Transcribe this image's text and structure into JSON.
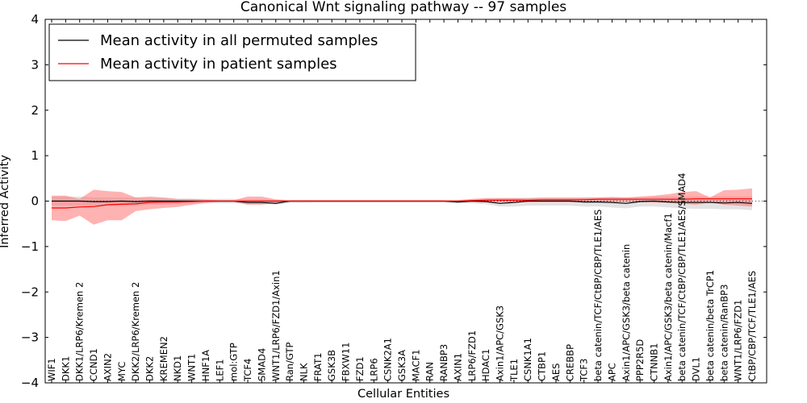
{
  "chart_data": {
    "type": "line",
    "title": "Canonical Wnt signaling pathway -- 97 samples",
    "xlabel": "Cellular Entities",
    "ylabel": "Inferred Activity",
    "ylim": [
      -4,
      4
    ],
    "yticks": [
      4,
      3,
      2,
      1,
      0,
      -1,
      -2,
      -3,
      -4
    ],
    "ytick_labels": [
      "4",
      "3",
      "2",
      "1",
      "0",
      "−1",
      "−2",
      "−3",
      "−4"
    ],
    "legend_position": "top-left",
    "categories": [
      "WIF1",
      "DKK1",
      "DKK1/LRP6/Kremen 2",
      "CCND1",
      "AXIN2",
      "MYC",
      "DKK2/LRP6/Kremen 2",
      "DKK2",
      "KREMEN2",
      "NKD1",
      "WNT1",
      "HNF1A",
      "LEF1",
      "mol:GTP",
      "TCF4",
      "SMAD4",
      "WNT1/LRP6/FZD1/Axin1",
      "Ran/GTP",
      "NLK",
      "FRAT1",
      "GSK3B",
      "FBXW11",
      "FZD1",
      "LRP6",
      "CSNK2A1",
      "GSK3A",
      "MACF1",
      "RAN",
      "RANBP3",
      "AXIN1",
      "LRP6/FZD1",
      "HDAC1",
      "Axin1/APC/GSK3",
      "TLE1",
      "CSNK1A1",
      "CTBP1",
      "AES",
      "CREBBP",
      "TCF3",
      "beta catenin/TCF/CtBP/CBP/TLE1/AES",
      "APC",
      "Axin1/APC/GSK3/beta catenin",
      "PPP2R5D",
      "CTNNB1",
      "Axin1/APC/GSK3/beta catenin/Macf1",
      "beta catenin/TCF/CtBP/CBP/TLE1/AES/SMAD4",
      "DVL1",
      "beta catenin/beta TrCP1",
      "beta catenin/RanBP3",
      "WNT1/LRP6/FZD1",
      "CtBP/CBP/TCF/TLE1/AES"
    ],
    "series": [
      {
        "name": "Mean activity in all permuted samples",
        "color": "#000000",
        "values": [
          0,
          0,
          0,
          -0.01,
          -0.01,
          0,
          -0.01,
          0,
          0,
          0,
          0,
          0,
          0,
          0,
          -0.03,
          -0.03,
          -0.05,
          0,
          0,
          0,
          0,
          0,
          0,
          0,
          0,
          0,
          0,
          0,
          0,
          -0.02,
          0,
          -0.01,
          -0.05,
          -0.03,
          0,
          0,
          0,
          0,
          -0.02,
          -0.02,
          -0.03,
          -0.05,
          -0.01,
          0,
          -0.02,
          -0.03,
          -0.03,
          -0.03,
          -0.04,
          -0.03,
          -0.05
        ],
        "band": {
          "color": "#cccccc",
          "upper": [
            0.1,
            0.1,
            0.1,
            0.08,
            0.08,
            0.08,
            0.08,
            0.06,
            0.06,
            0.05,
            0.05,
            0.05,
            0.05,
            0.05,
            0.04,
            0.04,
            0.03,
            0.02,
            0.02,
            0.02,
            0.02,
            0.02,
            0.02,
            0.02,
            0.02,
            0.02,
            0.02,
            0.02,
            0.02,
            0.02,
            0.03,
            0.04,
            0.06,
            0.06,
            0.06,
            0.06,
            0.06,
            0.06,
            0.07,
            0.08,
            0.08,
            0.08,
            0.08,
            0.09,
            0.1,
            0.1,
            0.1,
            0.1,
            0.1,
            0.1,
            0.1
          ],
          "lower": [
            -0.1,
            -0.1,
            -0.1,
            -0.1,
            -0.1,
            -0.1,
            -0.1,
            -0.08,
            -0.08,
            -0.06,
            -0.06,
            -0.05,
            -0.05,
            -0.05,
            -0.06,
            -0.06,
            -0.08,
            -0.04,
            -0.04,
            -0.03,
            -0.03,
            -0.03,
            -0.03,
            -0.03,
            -0.03,
            -0.03,
            -0.03,
            -0.03,
            -0.03,
            -0.05,
            -0.05,
            -0.07,
            -0.12,
            -0.12,
            -0.1,
            -0.1,
            -0.1,
            -0.1,
            -0.12,
            -0.12,
            -0.14,
            -0.16,
            -0.12,
            -0.12,
            -0.14,
            -0.16,
            -0.17,
            -0.17,
            -0.18,
            -0.18,
            -0.2
          ]
        }
      },
      {
        "name": "Mean activity in patient samples",
        "color": "#ff0000",
        "values": [
          -0.15,
          -0.15,
          -0.13,
          -0.12,
          -0.08,
          -0.07,
          -0.06,
          -0.03,
          -0.02,
          -0.02,
          -0.01,
          0,
          0,
          0,
          0,
          0,
          0,
          0,
          0,
          0,
          0,
          0,
          0,
          0,
          0,
          0,
          0,
          0,
          0,
          0,
          0.01,
          0.02,
          0.02,
          0.02,
          0.02,
          0.03,
          0.03,
          0.03,
          0.03,
          0.04,
          0.04,
          0.04,
          0.04,
          0.04,
          0.04,
          0.04,
          0.05,
          0.05,
          0.05,
          0.05,
          0.05
        ],
        "band": {
          "color": "#ff6666",
          "upper": [
            0.12,
            0.12,
            0.05,
            0.25,
            0.22,
            0.2,
            0.08,
            0.1,
            0.08,
            0.05,
            0.05,
            0.03,
            0.02,
            0.02,
            0.1,
            0.1,
            0.04,
            0.02,
            0.02,
            0.02,
            0.02,
            0.02,
            0.02,
            0.02,
            0.02,
            0.02,
            0.02,
            0.02,
            0.02,
            0.02,
            0.05,
            0.07,
            0.07,
            0.07,
            0.07,
            0.08,
            0.08,
            0.08,
            0.08,
            0.08,
            0.09,
            0.08,
            0.1,
            0.12,
            0.15,
            0.2,
            0.22,
            0.08,
            0.24,
            0.25,
            0.28
          ],
          "lower": [
            -0.42,
            -0.44,
            -0.32,
            -0.52,
            -0.42,
            -0.42,
            -0.22,
            -0.18,
            -0.15,
            -0.13,
            -0.08,
            -0.04,
            -0.02,
            -0.02,
            -0.08,
            -0.08,
            -0.04,
            -0.02,
            -0.02,
            -0.02,
            -0.02,
            -0.02,
            -0.02,
            -0.02,
            -0.02,
            -0.02,
            -0.02,
            -0.02,
            -0.02,
            -0.02,
            -0.02,
            -0.02,
            -0.02,
            -0.02,
            -0.02,
            -0.02,
            -0.02,
            -0.02,
            -0.02,
            -0.02,
            -0.02,
            -0.02,
            -0.02,
            -0.03,
            -0.04,
            -0.06,
            -0.08,
            -0.03,
            -0.08,
            -0.1,
            -0.12
          ]
        }
      }
    ]
  }
}
